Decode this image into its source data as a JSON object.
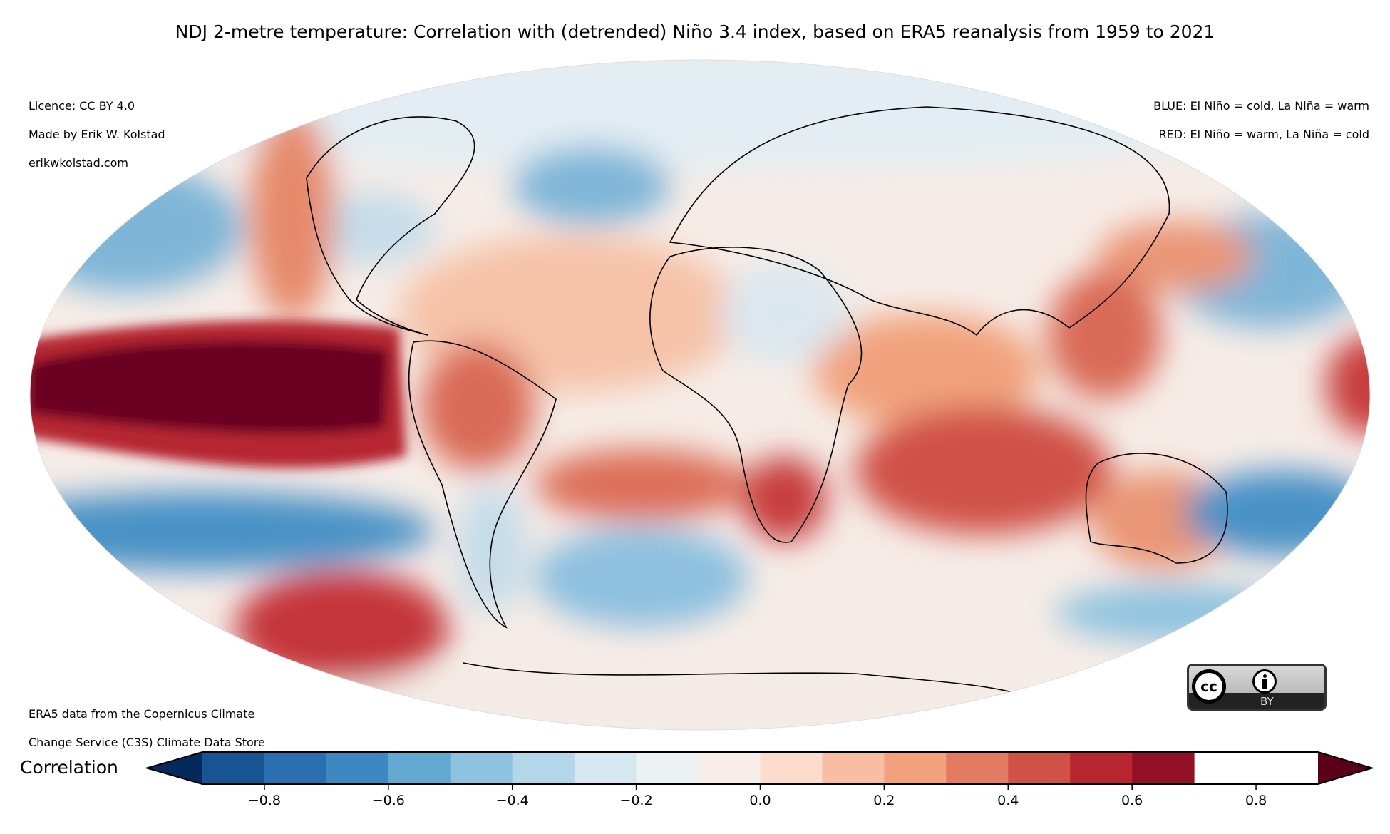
{
  "title": "NDJ 2-metre temperature: Correlation with (detrended) Niño 3.4 index, based on ERA5 reanalysis from 1959 to 2021",
  "credits_top_left": [
    "Licence: CC BY 4.0",
    "Made by Erik W. Kolstad",
    "erikwkolstad.com"
  ],
  "legend_top_right": [
    "BLUE: El Niño = cold, La Niña = warm",
    "RED: El Niño = warm, La Niña = cold"
  ],
  "credits_bottom_left": [
    "ERA5 data from the Copernicus Climate",
    "Change Service (C3S) Climate Data Store"
  ],
  "projection": "Mollweide",
  "licence_badge": {
    "cc": "cc",
    "by": "BY"
  },
  "colorbar": {
    "label": "Correlation",
    "range": [
      -0.9,
      0.9
    ],
    "step": 0.1,
    "extend": "both",
    "ticks": [
      "−0.8",
      "−0.6",
      "−0.4",
      "−0.2",
      "0.0",
      "0.2",
      "0.4",
      "0.6",
      "0.8"
    ],
    "tick_values": [
      -0.8,
      -0.6,
      -0.4,
      -0.2,
      0.0,
      0.2,
      0.4,
      0.6,
      0.8
    ],
    "colors": [
      "#08306b",
      "#175592",
      "#2a6fb0",
      "#3d88c0",
      "#62a8d1",
      "#8ec3df",
      "#b4d6e9",
      "#d6e7f1",
      "#ecf1f4",
      "#f7eeea",
      "#fbdccd",
      "#f8bda3",
      "#f1a27d",
      "#e27b61",
      "#d05146",
      "#b62530",
      "#921126",
      "#6b0020"
    ]
  }
}
